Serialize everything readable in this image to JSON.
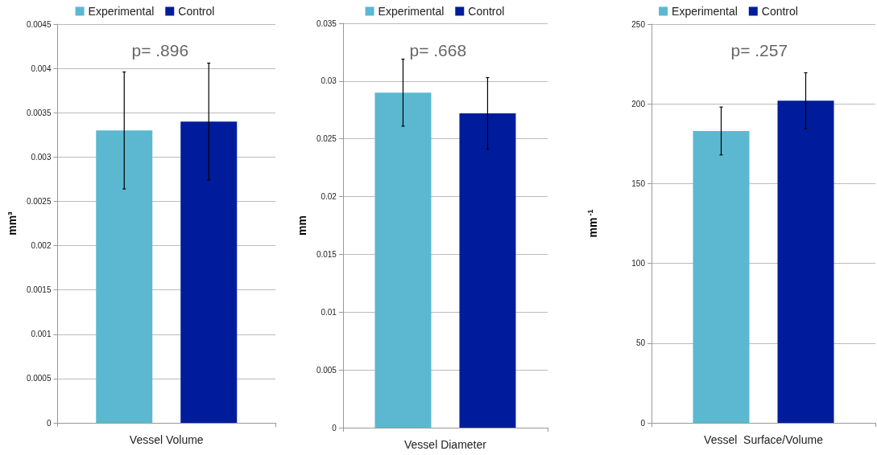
{
  "chart_data": [
    {
      "type": "bar",
      "categories": [
        "Vessel Volume"
      ],
      "ylabel": "mm³",
      "annotations": [
        "p= .896"
      ],
      "legend": "top",
      "grid": "y",
      "ylim": [
        0,
        0.0045
      ],
      "yticks": [
        0,
        0.0005,
        0.001,
        0.0015,
        0.002,
        0.0025,
        0.003,
        0.0035,
        0.004,
        0.0045
      ],
      "series": [
        {
          "name": "Experimental",
          "color": "#5bb8d0",
          "values": [
            0.0033
          ],
          "errors": [
            0.00066
          ]
        },
        {
          "name": "Control",
          "color": "#001c9c",
          "values": [
            0.0034
          ],
          "errors": [
            0.00066
          ]
        }
      ]
    },
    {
      "type": "bar",
      "categories": [
        "Vessel Diameter"
      ],
      "ylabel": "mm",
      "annotations": [
        "p= .668"
      ],
      "legend": "top",
      "grid": "y",
      "ylim": [
        0,
        0.035
      ],
      "yticks": [
        0,
        0.005,
        0.01,
        0.015,
        0.02,
        0.025,
        0.03,
        0.035
      ],
      "series": [
        {
          "name": "Experimental",
          "color": "#5bb8d0",
          "values": [
            0.029
          ],
          "errors": [
            0.0029
          ]
        },
        {
          "name": "Control",
          "color": "#001c9c",
          "values": [
            0.0272
          ],
          "errors": [
            0.0031
          ]
        }
      ]
    },
    {
      "type": "bar",
      "categories": [
        "Vessel  Surface/Volume"
      ],
      "ylabel": "mm$^{-1}$",
      "annotations": [
        "p= .257"
      ],
      "legend": "top",
      "grid": "y",
      "ylim": [
        0,
        250
      ],
      "yticks": [
        0,
        50,
        100,
        150,
        200,
        250
      ],
      "series": [
        {
          "name": "Experimental",
          "color": "#5bb8d0",
          "values": [
            183
          ],
          "errors": [
            15
          ]
        },
        {
          "name": "Control",
          "color": "#001c9c",
          "values": [
            202
          ],
          "errors": [
            17.5
          ]
        }
      ]
    }
  ]
}
